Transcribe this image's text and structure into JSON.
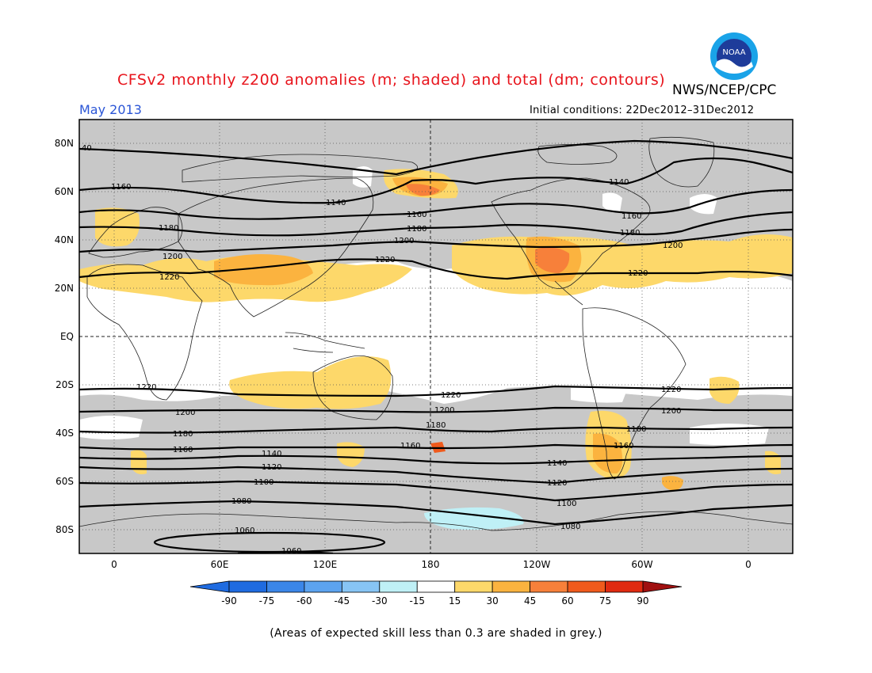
{
  "header": {
    "title": "CFSv2 monthly z200 anomalies (m; shaded) and total (dm; contours)",
    "agency": "NWS/NCEP/CPC",
    "month": "May 2013",
    "initial_conditions": "Initial conditions: 22Dec2012–31Dec2012",
    "logo_text": "NOAA"
  },
  "map": {
    "lat_labels": [
      "80N",
      "60N",
      "40N",
      "20N",
      "EQ",
      "20S",
      "40S",
      "60S",
      "80S"
    ],
    "lon_labels": [
      "0",
      "60E",
      "120E",
      "180",
      "120W",
      "60W",
      "0"
    ],
    "contour_labels": {
      "c1040": "40",
      "c1060": "1060",
      "c1080": "1080",
      "c1100": "1100",
      "c1120": "1120",
      "c1140": "1140",
      "c1160": "1160",
      "c1180": "1180",
      "c1200": "1200",
      "c1220": "1220"
    },
    "colors": {
      "skill_grey": "#c8c8c8",
      "pos15": "#fdd86a",
      "pos30": "#fbb33f",
      "pos45": "#f7803a",
      "pos60": "#f05a1c",
      "neg15": "#bff0f6"
    }
  },
  "colorbar": {
    "ticks": [
      "-90",
      "-75",
      "-60",
      "-45",
      "-30",
      "-15",
      "15",
      "30",
      "45",
      "60",
      "75",
      "90"
    ],
    "colors": [
      "#1f6be0",
      "#3b86e8",
      "#5ca3ef",
      "#87c4f4",
      "#bff0f6",
      "#ffffff",
      "#fdd86a",
      "#fbb33f",
      "#f7803a",
      "#f05a1c",
      "#e02a10"
    ]
  },
  "footer": {
    "caption": "(Areas of expected skill less than 0.3 are shaded in grey.)"
  }
}
